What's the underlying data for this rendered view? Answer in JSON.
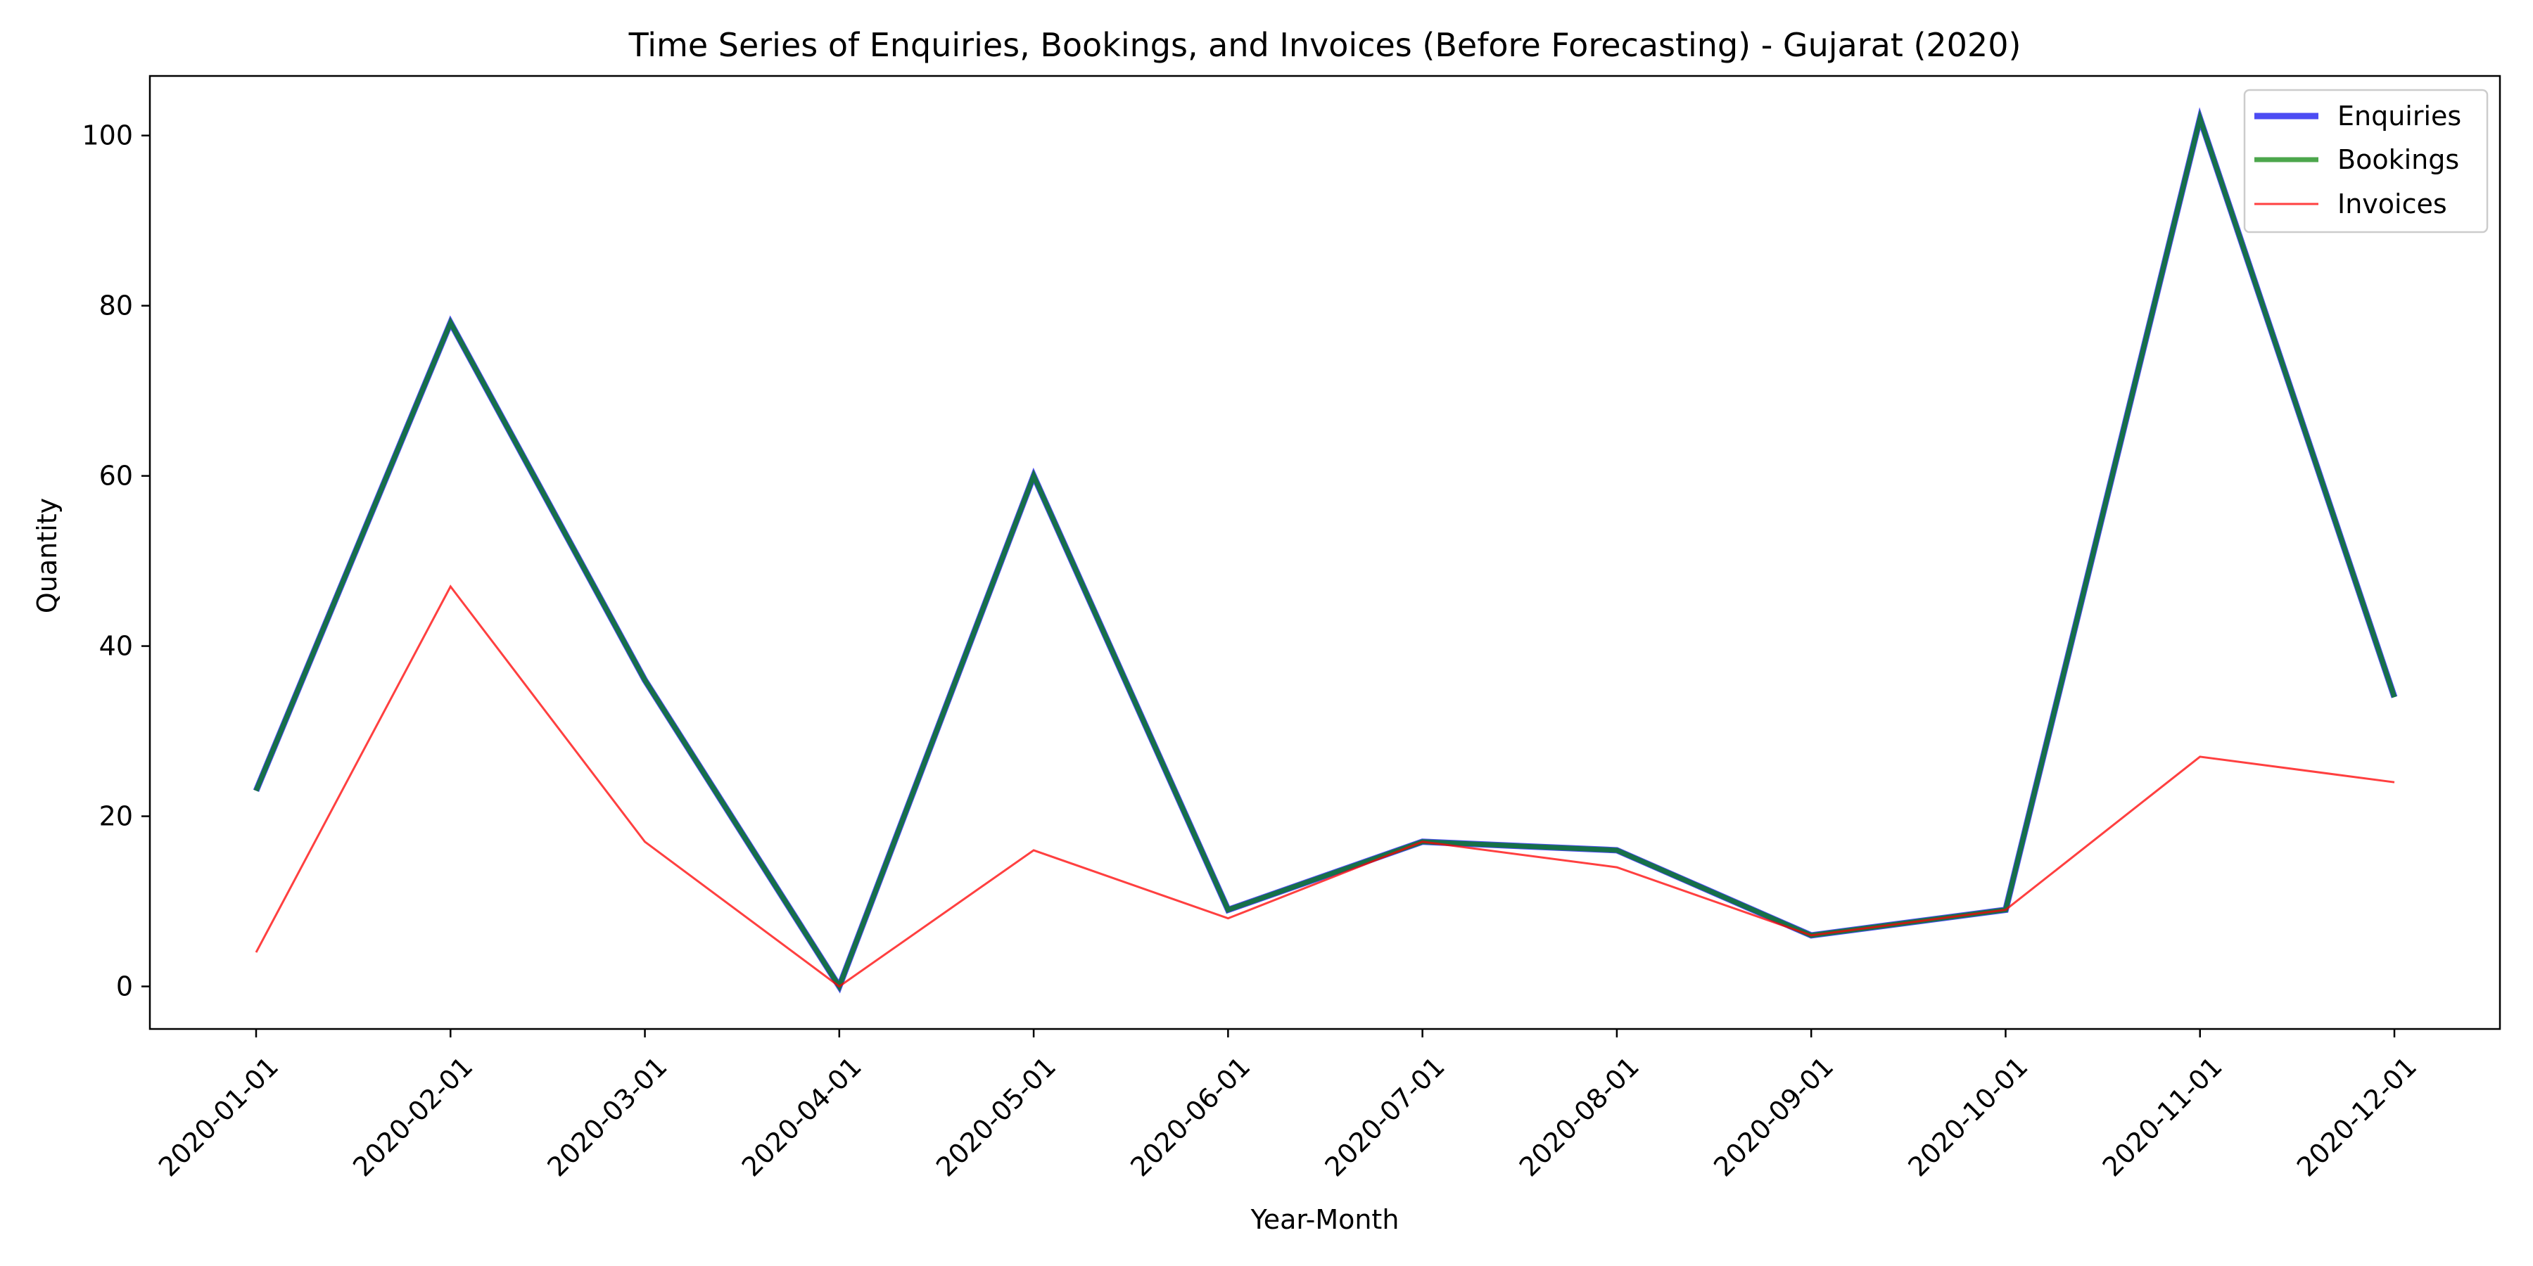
{
  "chart_data": {
    "type": "line",
    "title": "Time Series of Enquiries, Bookings, and Invoices (Before Forecasting) - Gujarat (2020)",
    "xlabel": "Year-Month",
    "ylabel": "Quantity",
    "x": [
      "2020-01-01",
      "2020-02-01",
      "2020-03-01",
      "2020-04-01",
      "2020-05-01",
      "2020-06-01",
      "2020-07-01",
      "2020-08-01",
      "2020-09-01",
      "2020-10-01",
      "2020-11-01",
      "2020-12-01"
    ],
    "ylim": [
      -5,
      107
    ],
    "yticks": [
      0,
      20,
      40,
      60,
      80,
      100
    ],
    "grid": false,
    "legend_position": "top-right",
    "series": [
      {
        "name": "Enquiries",
        "color": "#0000ee",
        "opacity": 0.7,
        "values": [
          23,
          78,
          36,
          0,
          60,
          9,
          17,
          16,
          6,
          9,
          102,
          34
        ]
      },
      {
        "name": "Bookings",
        "color": "#008000",
        "opacity": 0.7,
        "values": [
          23,
          78,
          36,
          0,
          60,
          9,
          17,
          16,
          6,
          9,
          102,
          34
        ]
      },
      {
        "name": "Invoices",
        "color": "#ff0000",
        "opacity": 0.75,
        "values": [
          4,
          47,
          17,
          0,
          16,
          8,
          17,
          14,
          6,
          9,
          27,
          24
        ]
      }
    ]
  }
}
